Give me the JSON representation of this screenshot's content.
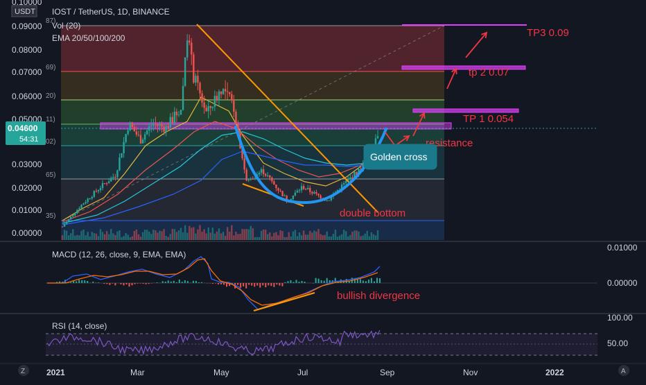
{
  "header": {
    "symbol_title": "IOST / TetherUS, 1D, BINANCE",
    "volume_label": "Vol (20)",
    "ema_label": "EMA 20/50/100/200",
    "currency_badge": "USDT"
  },
  "price_badge": {
    "value": "0.04600",
    "countdown": "54:31"
  },
  "price_axis": [
    "0.10000",
    "0.09000",
    "0.08000",
    "0.07000",
    "0.06000",
    "0.05000",
    "0.03000",
    "0.02000",
    "0.01000",
    "0.00000"
  ],
  "fib_level_labels": [
    "87)",
    "69)",
    "20)",
    "11)",
    "02)",
    "65)",
    "35)"
  ],
  "time_axis": [
    "2021",
    "Mar",
    "May",
    "Jul",
    "Sep",
    "Nov",
    "2022"
  ],
  "macd": {
    "label": "MACD (12, 26, close, 9, EMA, EMA)",
    "axis": [
      "0.01000",
      "0.00000"
    ]
  },
  "rsi": {
    "label": "RSI (14, close)",
    "axis": [
      "100.00",
      "50.00"
    ]
  },
  "annotations": {
    "tp3": "TP3 0.09",
    "tp2": "tp 2 0.07",
    "tp1": "TP 1 0.054",
    "resistance": "resistance",
    "golden_cross": "Golden cross",
    "double_bottom": "double bottom",
    "bullish_divergence": "bullish divergence"
  },
  "footer": {
    "left_btn": "Z",
    "right_btn": "A"
  },
  "colors": {
    "background": "#131722",
    "up": "#26a69a",
    "down": "#ef5350",
    "trendline": "#ff9800",
    "cup": "#2196f3",
    "target": "#e040fb",
    "annotation": "#f23645",
    "macd": "#2962ff",
    "signal": "#ff6d00",
    "rsi": "#7e57c2"
  },
  "chart_data": {
    "type": "candlestick",
    "x_range": [
      "2021-01",
      "2022-01"
    ],
    "price_range": [
      0,
      0.1
    ],
    "close_path": [
      [
        "2021-01-01",
        0.006
      ],
      [
        "2021-01-15",
        0.015
      ],
      [
        "2021-01-30",
        0.023
      ],
      [
        "2021-02-10",
        0.028
      ],
      [
        "2021-02-20",
        0.05
      ],
      [
        "2021-03-01",
        0.043
      ],
      [
        "2021-03-10",
        0.05
      ],
      [
        "2021-03-20",
        0.048
      ],
      [
        "2021-04-01",
        0.057
      ],
      [
        "2021-04-05",
        0.09
      ],
      [
        "2021-04-10",
        0.07
      ],
      [
        "2021-04-20",
        0.054
      ],
      [
        "2021-05-01",
        0.065
      ],
      [
        "2021-05-10",
        0.058
      ],
      [
        "2021-05-20",
        0.025
      ],
      [
        "2021-06-01",
        0.03
      ],
      [
        "2021-06-20",
        0.017
      ],
      [
        "2021-07-01",
        0.023
      ],
      [
        "2021-07-20",
        0.017
      ],
      [
        "2021-08-01",
        0.024
      ],
      [
        "2021-08-15",
        0.031
      ],
      [
        "2021-08-27",
        0.046
      ]
    ],
    "current_price": 0.046,
    "fib_levels": [
      0.09,
      0.07,
      0.058,
      0.047,
      0.039,
      0.023,
      0.006
    ],
    "targets": [
      {
        "label": "TP 1 0.054",
        "value": 0.054
      },
      {
        "label": "tp 2 0.07",
        "value": 0.072
      },
      {
        "label": "TP3 0.09",
        "value": 0.09
      }
    ],
    "macd_range": [
      -0.008,
      0.012
    ],
    "rsi_range": [
      0,
      100
    ]
  }
}
